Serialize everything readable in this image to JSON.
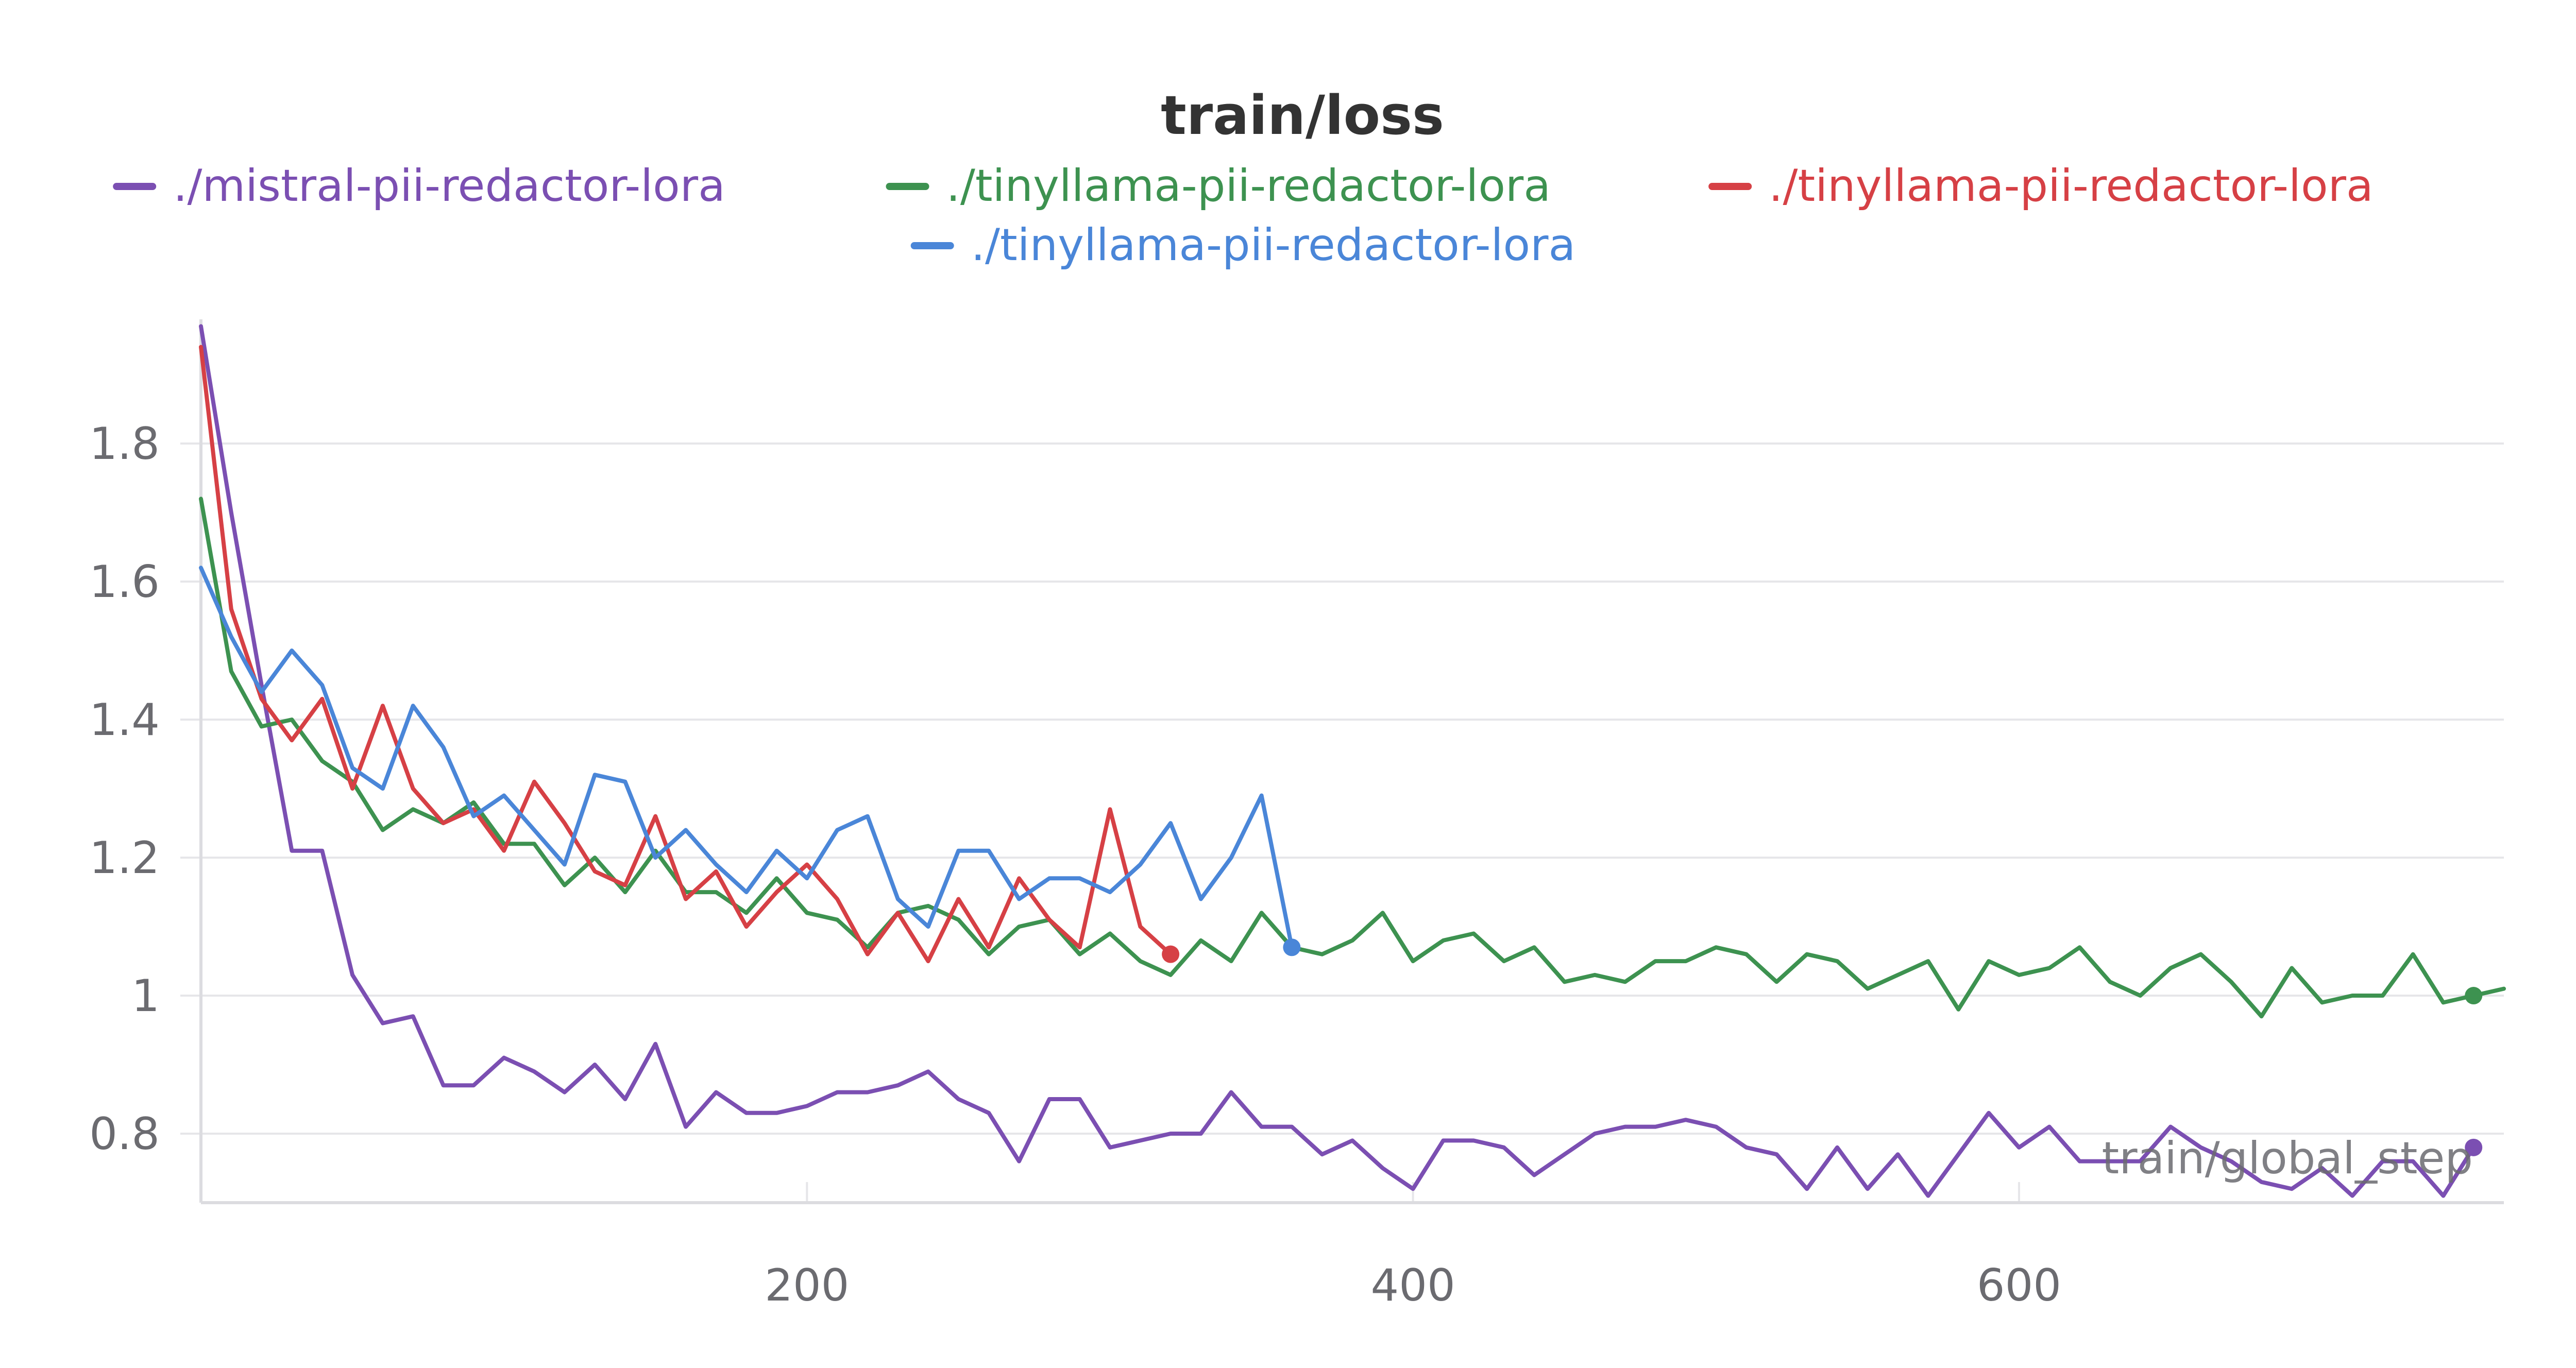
{
  "chart_data": {
    "type": "line",
    "title": "train/loss",
    "xlabel": "train/global_step",
    "ylabel": "",
    "xlim": [
      0,
      760
    ],
    "ylim": [
      0.7,
      1.98
    ],
    "xticks": [
      200,
      400,
      600
    ],
    "yticks": [
      0.8,
      1.0,
      1.2,
      1.4,
      1.6,
      1.8
    ],
    "ytick_labels": [
      "0.8",
      "1",
      "1.2",
      "1.4",
      "1.6",
      "1.8"
    ],
    "xtick_labels": [
      "200",
      "400",
      "600"
    ],
    "grid": true,
    "legend_position": "top-center",
    "series": [
      {
        "name": "./mistral-pii-redactor-lora",
        "color": "#7b4fb2",
        "end_marker": true,
        "points": [
          [
            0,
            1.97
          ],
          [
            10,
            1.7
          ],
          [
            20,
            1.45
          ],
          [
            30,
            1.21
          ],
          [
            40,
            1.21
          ],
          [
            50,
            1.03
          ],
          [
            60,
            0.96
          ],
          [
            70,
            0.97
          ],
          [
            80,
            0.87
          ],
          [
            90,
            0.87
          ],
          [
            100,
            0.91
          ],
          [
            110,
            0.89
          ],
          [
            120,
            0.86
          ],
          [
            130,
            0.9
          ],
          [
            140,
            0.85
          ],
          [
            150,
            0.93
          ],
          [
            160,
            0.81
          ],
          [
            170,
            0.86
          ],
          [
            180,
            0.83
          ],
          [
            190,
            0.83
          ],
          [
            200,
            0.84
          ],
          [
            210,
            0.86
          ],
          [
            220,
            0.86
          ],
          [
            230,
            0.87
          ],
          [
            240,
            0.89
          ],
          [
            250,
            0.85
          ],
          [
            260,
            0.83
          ],
          [
            270,
            0.76
          ],
          [
            280,
            0.85
          ],
          [
            290,
            0.85
          ],
          [
            300,
            0.78
          ],
          [
            310,
            0.79
          ],
          [
            320,
            0.8
          ],
          [
            330,
            0.8
          ],
          [
            340,
            0.86
          ],
          [
            350,
            0.81
          ],
          [
            360,
            0.81
          ],
          [
            370,
            0.77
          ],
          [
            380,
            0.79
          ],
          [
            390,
            0.75
          ],
          [
            400,
            0.72
          ],
          [
            410,
            0.79
          ],
          [
            420,
            0.79
          ],
          [
            430,
            0.78
          ],
          [
            440,
            0.74
          ],
          [
            450,
            0.77
          ],
          [
            460,
            0.8
          ],
          [
            470,
            0.81
          ],
          [
            480,
            0.81
          ],
          [
            490,
            0.82
          ],
          [
            500,
            0.81
          ],
          [
            510,
            0.78
          ],
          [
            520,
            0.77
          ],
          [
            530,
            0.72
          ],
          [
            540,
            0.78
          ],
          [
            550,
            0.72
          ],
          [
            560,
            0.77
          ],
          [
            570,
            0.71
          ],
          [
            580,
            0.77
          ],
          [
            590,
            0.83
          ],
          [
            600,
            0.78
          ],
          [
            610,
            0.81
          ],
          [
            620,
            0.76
          ],
          [
            630,
            0.76
          ],
          [
            640,
            0.76
          ],
          [
            650,
            0.81
          ],
          [
            660,
            0.78
          ],
          [
            670,
            0.76
          ],
          [
            680,
            0.73
          ],
          [
            690,
            0.72
          ],
          [
            700,
            0.75
          ],
          [
            710,
            0.71
          ],
          [
            720,
            0.76
          ],
          [
            730,
            0.76
          ],
          [
            740,
            0.71
          ],
          [
            750,
            0.78
          ]
        ]
      },
      {
        "name": "./tinyllama-pii-redactor-lora",
        "color": "#3d9250",
        "end_marker": true,
        "points": [
          [
            0,
            1.72
          ],
          [
            10,
            1.47
          ],
          [
            20,
            1.39
          ],
          [
            30,
            1.4
          ],
          [
            40,
            1.34
          ],
          [
            50,
            1.31
          ],
          [
            60,
            1.24
          ],
          [
            70,
            1.27
          ],
          [
            80,
            1.25
          ],
          [
            90,
            1.28
          ],
          [
            100,
            1.22
          ],
          [
            110,
            1.22
          ],
          [
            120,
            1.16
          ],
          [
            130,
            1.2
          ],
          [
            140,
            1.15
          ],
          [
            150,
            1.21
          ],
          [
            160,
            1.15
          ],
          [
            170,
            1.15
          ],
          [
            180,
            1.12
          ],
          [
            190,
            1.17
          ],
          [
            200,
            1.12
          ],
          [
            210,
            1.11
          ],
          [
            220,
            1.07
          ],
          [
            230,
            1.12
          ],
          [
            240,
            1.13
          ],
          [
            250,
            1.11
          ],
          [
            260,
            1.06
          ],
          [
            270,
            1.1
          ],
          [
            280,
            1.11
          ],
          [
            290,
            1.06
          ],
          [
            300,
            1.09
          ],
          [
            310,
            1.05
          ],
          [
            320,
            1.03
          ],
          [
            330,
            1.08
          ],
          [
            340,
            1.05
          ],
          [
            350,
            1.12
          ],
          [
            360,
            1.07
          ],
          [
            370,
            1.06
          ],
          [
            380,
            1.08
          ],
          [
            390,
            1.12
          ],
          [
            400,
            1.05
          ],
          [
            410,
            1.08
          ],
          [
            420,
            1.09
          ],
          [
            430,
            1.05
          ],
          [
            440,
            1.07
          ],
          [
            450,
            1.02
          ],
          [
            460,
            1.03
          ],
          [
            470,
            1.02
          ],
          [
            480,
            1.05
          ],
          [
            490,
            1.05
          ],
          [
            500,
            1.07
          ],
          [
            510,
            1.06
          ],
          [
            520,
            1.02
          ],
          [
            530,
            1.06
          ],
          [
            540,
            1.05
          ],
          [
            550,
            1.01
          ],
          [
            560,
            1.03
          ],
          [
            570,
            1.05
          ],
          [
            580,
            0.98
          ],
          [
            590,
            1.05
          ],
          [
            600,
            1.03
          ],
          [
            610,
            1.04
          ],
          [
            620,
            1.07
          ],
          [
            630,
            1.02
          ],
          [
            640,
            1.0
          ],
          [
            650,
            1.04
          ],
          [
            660,
            1.06
          ],
          [
            670,
            1.02
          ],
          [
            680,
            0.97
          ],
          [
            690,
            1.04
          ],
          [
            700,
            0.99
          ],
          [
            710,
            1.0
          ],
          [
            720,
            1.0
          ],
          [
            730,
            1.06
          ],
          [
            740,
            0.99
          ],
          [
            750,
            1.0
          ],
          [
            760,
            1.01
          ]
        ],
        "marker_at": [
          750,
          1.0
        ]
      },
      {
        "name": "./tinyllama-pii-redactor-lora",
        "color": "#d64045",
        "end_marker": true,
        "points": [
          [
            0,
            1.94
          ],
          [
            10,
            1.56
          ],
          [
            20,
            1.43
          ],
          [
            30,
            1.37
          ],
          [
            40,
            1.43
          ],
          [
            50,
            1.3
          ],
          [
            60,
            1.42
          ],
          [
            70,
            1.3
          ],
          [
            80,
            1.25
          ],
          [
            90,
            1.27
          ],
          [
            100,
            1.21
          ],
          [
            110,
            1.31
          ],
          [
            120,
            1.25
          ],
          [
            130,
            1.18
          ],
          [
            140,
            1.16
          ],
          [
            150,
            1.26
          ],
          [
            160,
            1.14
          ],
          [
            170,
            1.18
          ],
          [
            180,
            1.1
          ],
          [
            190,
            1.15
          ],
          [
            200,
            1.19
          ],
          [
            210,
            1.14
          ],
          [
            220,
            1.06
          ],
          [
            230,
            1.12
          ],
          [
            240,
            1.05
          ],
          [
            250,
            1.14
          ],
          [
            260,
            1.07
          ],
          [
            270,
            1.17
          ],
          [
            280,
            1.11
          ],
          [
            290,
            1.07
          ],
          [
            300,
            1.27
          ],
          [
            310,
            1.1
          ],
          [
            320,
            1.06
          ]
        ]
      },
      {
        "name": "./tinyllama-pii-redactor-lora",
        "color": "#4a86d8",
        "end_marker": true,
        "points": [
          [
            0,
            1.62
          ],
          [
            10,
            1.52
          ],
          [
            20,
            1.44
          ],
          [
            30,
            1.5
          ],
          [
            40,
            1.45
          ],
          [
            50,
            1.33
          ],
          [
            60,
            1.3
          ],
          [
            70,
            1.42
          ],
          [
            80,
            1.36
          ],
          [
            90,
            1.26
          ],
          [
            100,
            1.29
          ],
          [
            110,
            1.24
          ],
          [
            120,
            1.19
          ],
          [
            130,
            1.32
          ],
          [
            140,
            1.31
          ],
          [
            150,
            1.2
          ],
          [
            160,
            1.24
          ],
          [
            170,
            1.19
          ],
          [
            180,
            1.15
          ],
          [
            190,
            1.21
          ],
          [
            200,
            1.17
          ],
          [
            210,
            1.24
          ],
          [
            220,
            1.26
          ],
          [
            230,
            1.14
          ],
          [
            240,
            1.1
          ],
          [
            250,
            1.21
          ],
          [
            260,
            1.21
          ],
          [
            270,
            1.14
          ],
          [
            280,
            1.17
          ],
          [
            290,
            1.17
          ],
          [
            300,
            1.15
          ],
          [
            310,
            1.19
          ],
          [
            320,
            1.25
          ],
          [
            330,
            1.14
          ],
          [
            340,
            1.2
          ],
          [
            350,
            1.29
          ],
          [
            360,
            1.07
          ]
        ]
      }
    ]
  }
}
